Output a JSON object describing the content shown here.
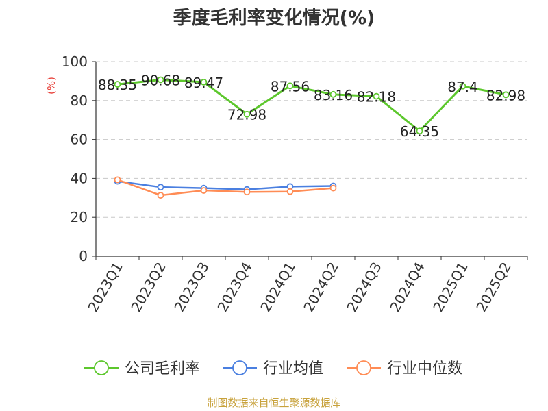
{
  "chart_data": {
    "type": "line",
    "title": "季度毛利率变化情况(%)",
    "ylabel": "(%)",
    "xlabel": "",
    "ylim": [
      0,
      100
    ],
    "yticks": [
      0,
      20,
      40,
      60,
      80,
      100
    ],
    "categories": [
      "2023Q1",
      "2023Q2",
      "2023Q3",
      "2023Q4",
      "2024Q1",
      "2024Q2",
      "2024Q3",
      "2024Q4",
      "2025Q1",
      "2025Q2"
    ],
    "grid": true,
    "legend_position": "bottom",
    "series": [
      {
        "name": "公司毛利率",
        "color": "#5cc72c",
        "values": [
          88.35,
          90.68,
          89.47,
          72.98,
          87.56,
          83.16,
          82.18,
          64.35,
          87.4,
          82.98
        ],
        "labels": [
          "88.35",
          "90.68",
          "89.47",
          "72.98",
          "87.56",
          "83.16",
          "82.18",
          "64.35",
          "87.4",
          "82.98"
        ]
      },
      {
        "name": "行业均值",
        "color": "#4a7fe0",
        "values": [
          38.5,
          35.5,
          35.0,
          34.3,
          35.8,
          36.1,
          null,
          null,
          null,
          null
        ]
      },
      {
        "name": "行业中位数",
        "color": "#ff8c55",
        "values": [
          39.3,
          31.3,
          33.8,
          33.0,
          33.2,
          35.0,
          null,
          null,
          null,
          null
        ]
      }
    ]
  },
  "source": "制图数据来自恒生聚源数据库"
}
